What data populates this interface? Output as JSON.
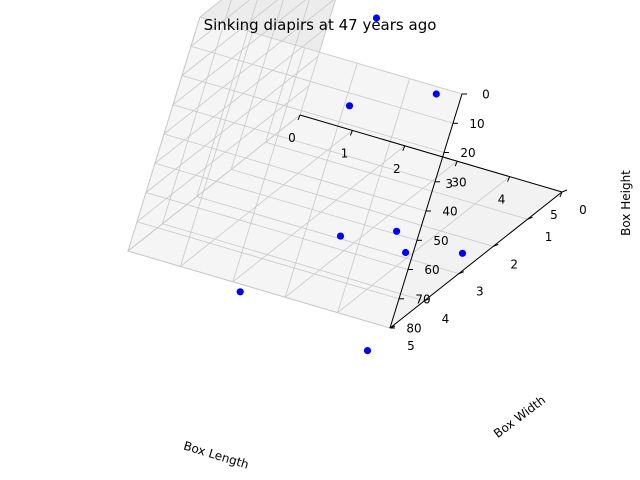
{
  "chart_data": {
    "type": "scatter",
    "projection": "3d",
    "title": "Sinking diapirs at 47 years ago",
    "xlabel": "Box Length",
    "ylabel": "Box Width",
    "zlabel": "Box Height",
    "xlim": [
      0,
      5
    ],
    "ylim": [
      0,
      5
    ],
    "zlim": [
      0,
      80
    ],
    "z_inverted": true,
    "x_ticks": [
      0,
      1,
      2,
      3,
      4,
      5
    ],
    "y_ticks": [
      0,
      1,
      2,
      3,
      4,
      5
    ],
    "z_ticks": [
      0,
      10,
      20,
      30,
      40,
      50,
      60,
      70,
      80
    ],
    "grid": true,
    "marker_color": "#0000ff",
    "points": [
      {
        "x": 0.5,
        "y": 0.5,
        "z": 10
      },
      {
        "x": 1.5,
        "y": 0.5,
        "z": 25
      },
      {
        "x": 1.5,
        "y": 1.5,
        "z": 25
      },
      {
        "x": 1.5,
        "y": 1.5,
        "z": 55
      },
      {
        "x": 2.5,
        "y": 0.5,
        "z": 55
      },
      {
        "x": 2.5,
        "y": 2.5,
        "z": 85
      },
      {
        "x": 3.0,
        "y": 1.5,
        "z": 90
      },
      {
        "x": 3.5,
        "y": 2.0,
        "z": 90
      },
      {
        "x": 1.5,
        "y": 3.5,
        "z": 100
      },
      {
        "x": 4.5,
        "y": 2.0,
        "z": 85
      },
      {
        "x": 4.5,
        "y": 4.5,
        "z": 95
      }
    ]
  }
}
